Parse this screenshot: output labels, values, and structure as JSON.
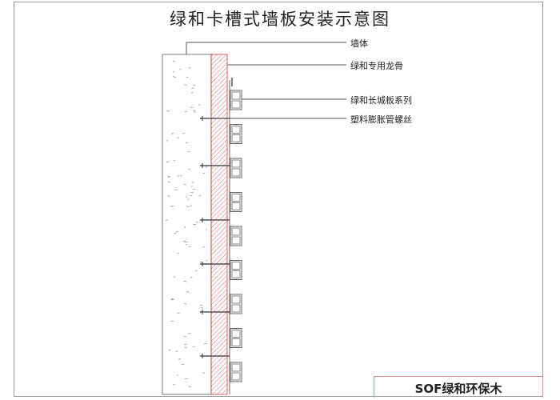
{
  "title": "绿和卡槽式墙板安装示意图",
  "labels": {
    "wall": "墙体",
    "keel": "绿和专用龙骨",
    "panel": "绿和长城板系列",
    "screw": "塑料膨胀管螺丝"
  },
  "caption": "SOF绿和环保木",
  "colors": {
    "keel_hatch": "#d04040",
    "lines": "#555555"
  }
}
